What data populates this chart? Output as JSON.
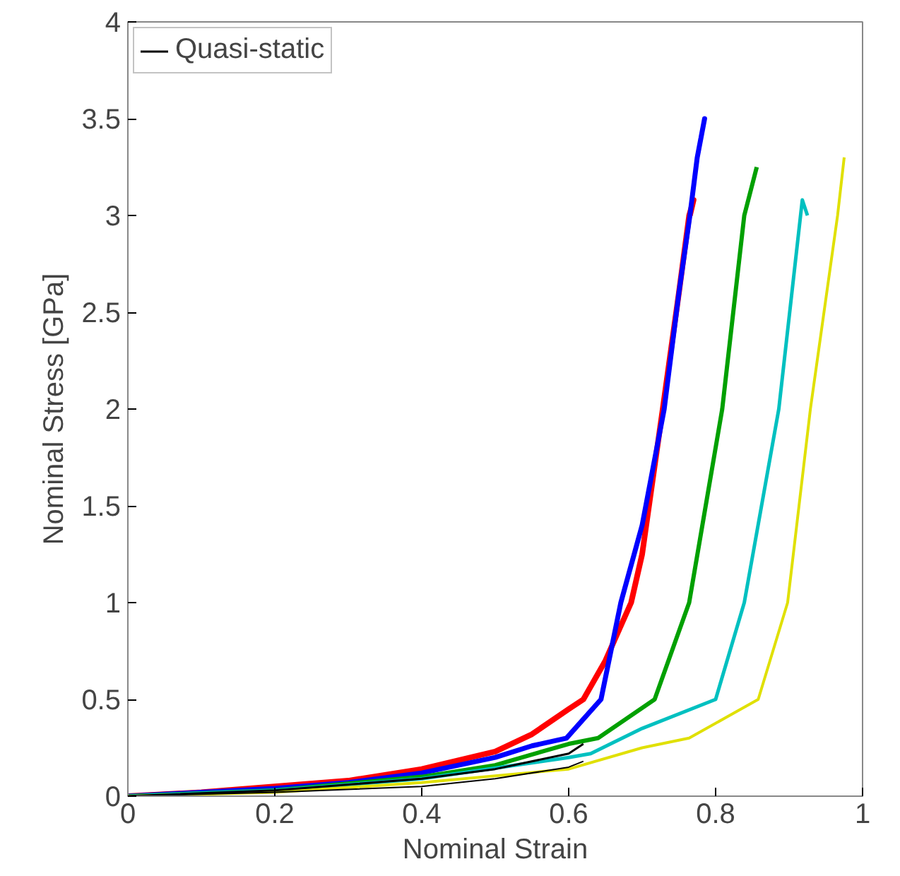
{
  "chart_data": {
    "type": "line",
    "xlabel": "Nominal Strain",
    "ylabel": "Nominal Stress [GPa]",
    "xlim": [
      0,
      1
    ],
    "ylim": [
      0,
      4
    ],
    "xticks": [
      0,
      0.2,
      0.4,
      0.6,
      0.8,
      1
    ],
    "yticks": [
      0,
      0.5,
      1,
      1.5,
      2,
      2.5,
      3,
      3.5,
      4
    ],
    "grid": false,
    "legend": "top left",
    "line_style": "solid",
    "series": [
      {
        "color": "#ff0000",
        "x": [
          0,
          0.1,
          0.2,
          0.3,
          0.4,
          0.5,
          0.55,
          0.6,
          0.62,
          0.65,
          0.685,
          0.7,
          0.728,
          0.75,
          0.764,
          0.77,
          0.765
        ],
        "values": [
          0,
          0.02,
          0.05,
          0.08,
          0.14,
          0.23,
          0.32,
          0.45,
          0.5,
          0.7,
          1,
          1.25,
          2,
          2.6,
          3,
          3.08,
          3.0
        ]
      },
      {
        "color": "#0000ff",
        "x": [
          0,
          0.1,
          0.2,
          0.3,
          0.4,
          0.5,
          0.55,
          0.597,
          0.644,
          0.671,
          0.7,
          0.73,
          0.75,
          0.765,
          0.775,
          0.785,
          0.78
        ],
        "values": [
          0,
          0.02,
          0.04,
          0.07,
          0.12,
          0.2,
          0.26,
          0.3,
          0.5,
          1,
          1.4,
          2,
          2.6,
          3,
          3.3,
          3.5,
          3.4
        ]
      },
      {
        "color": "#00a000",
        "x": [
          0,
          0.2,
          0.4,
          0.5,
          0.6,
          0.64,
          0.717,
          0.764,
          0.809,
          0.839,
          0.856
        ],
        "values": [
          0,
          0.03,
          0.1,
          0.16,
          0.27,
          0.3,
          0.5,
          1,
          2,
          3,
          3.25
        ]
      },
      {
        "color": "#00c0c0",
        "x": [
          0,
          0.2,
          0.4,
          0.6,
          0.63,
          0.7,
          0.8,
          0.839,
          0.886,
          0.918,
          0.925
        ],
        "values": [
          0,
          0.03,
          0.09,
          0.2,
          0.22,
          0.35,
          0.5,
          1,
          2,
          3.08,
          3.0
        ]
      },
      {
        "color": "#e0e000",
        "x": [
          0,
          0.2,
          0.4,
          0.6,
          0.7,
          0.764,
          0.858,
          0.898,
          0.929,
          0.966,
          0.975
        ],
        "values": [
          0,
          0.02,
          0.07,
          0.14,
          0.25,
          0.3,
          0.5,
          1,
          2,
          3,
          3.3
        ]
      },
      {
        "name": "Quasi-static",
        "color": "#000000",
        "x": [
          0,
          0.2,
          0.4,
          0.5,
          0.6,
          0.62
        ],
        "values": [
          0,
          0.03,
          0.09,
          0.14,
          0.22,
          0.27
        ]
      },
      {
        "color": "#000000",
        "x": [
          0,
          0.2,
          0.4,
          0.5,
          0.6,
          0.62
        ],
        "values": [
          0,
          0.02,
          0.05,
          0.09,
          0.15,
          0.18
        ]
      }
    ]
  }
}
